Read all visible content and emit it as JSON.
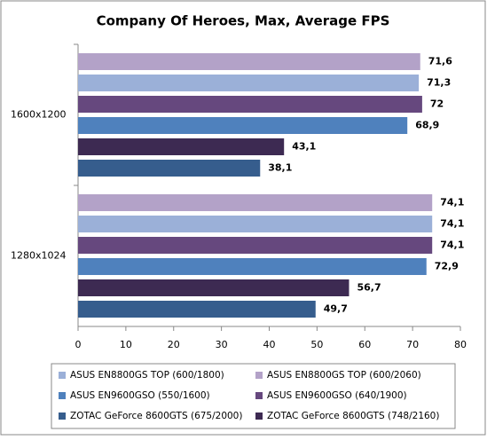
{
  "chart_data": {
    "type": "bar",
    "orientation": "horizontal",
    "title": "Company Of Heroes, Max, Average FPS",
    "categories": [
      "1600x1200",
      "1280x1024"
    ],
    "series": [
      {
        "name": "ASUS EN8800GS TOP (600/2060)",
        "color": "#b3a2c8",
        "values": [
          71.6,
          74.1
        ],
        "value_labels": [
          "71,6",
          "74,1"
        ]
      },
      {
        "name": "ASUS EN8800GS TOP (600/1800)",
        "color": "#9bb0d8",
        "values": [
          71.3,
          74.1
        ],
        "value_labels": [
          "71,3",
          "74,1"
        ]
      },
      {
        "name": "ASUS EN9600GSO (640/1900)",
        "color": "#66487e",
        "values": [
          72,
          74.1
        ],
        "value_labels": [
          "72",
          "74,1"
        ]
      },
      {
        "name": "ASUS EN9600GSO (550/1600)",
        "color": "#4f81bd",
        "values": [
          68.9,
          72.9
        ],
        "value_labels": [
          "68,9",
          "72,9"
        ]
      },
      {
        "name": "ZOTAC GeForce 8600GTS (748/2160)",
        "color": "#3d2a52",
        "values": [
          43.1,
          56.7
        ],
        "value_labels": [
          "43,1",
          "56,7"
        ]
      },
      {
        "name": "ZOTAC GeForce 8600GTS (675/2000)",
        "color": "#365d8d",
        "values": [
          38.1,
          49.7
        ],
        "value_labels": [
          "38,1",
          "49,7"
        ]
      }
    ],
    "xlim": [
      0,
      80
    ],
    "xticks": [
      0,
      10,
      20,
      30,
      40,
      50,
      60,
      70,
      80
    ],
    "grid": false,
    "legend": "bottom"
  }
}
